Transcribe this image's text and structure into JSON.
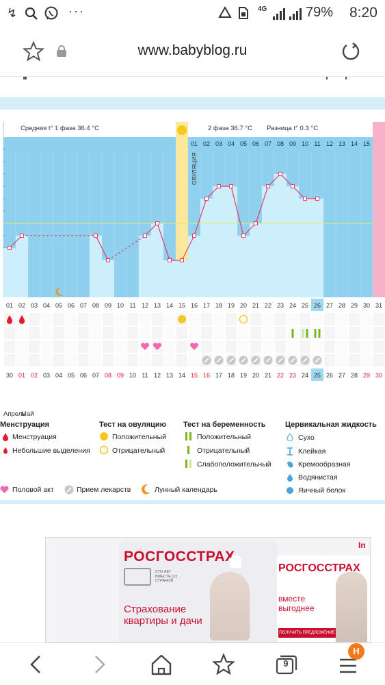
{
  "status_bar": {
    "time": "8:20",
    "battery": "79%",
    "network": "4G",
    "left_icons": [
      "notification-icon",
      "search-icon",
      "viber-icon",
      "more-icon"
    ],
    "right_icons": [
      "recycle-icon",
      "sim-icon",
      "signal-icon",
      "signal-icon"
    ]
  },
  "browser": {
    "url": "www.babyblog.ru",
    "nav": [
      "back",
      "forward",
      "home",
      "bookmarks",
      "tabs",
      "menu"
    ],
    "tabs_count": "9",
    "menu_badge": "H"
  },
  "chart": {
    "phase1": "Средняя t° 1 фаза 36.4 °С",
    "phase2": "2 фаза 36.7 °С",
    "diff": "Разница t° 0.3 °С",
    "ovulation": "ОВУЛЯЦИЯ",
    "header_days": [
      "01",
      "02",
      "03",
      "04",
      "05",
      "06",
      "07",
      "08",
      "09",
      "10",
      "11",
      "12",
      "13",
      "14",
      "15"
    ],
    "days": [
      "01",
      "02",
      "03",
      "04",
      "05",
      "06",
      "07",
      "08",
      "09",
      "10",
      "11",
      "12",
      "13",
      "14",
      "15",
      "16",
      "17",
      "18",
      "19",
      "20",
      "21",
      "22",
      "23",
      "24",
      "25",
      "26",
      "27",
      "28",
      "29",
      "30",
      "31"
    ],
    "today_index": 25,
    "dates": [
      "30",
      "01",
      "02",
      "03",
      "04",
      "05",
      "06",
      "07",
      "08",
      "09",
      "10",
      "11",
      "12",
      "13",
      "14",
      "15",
      "16",
      "17",
      "18",
      "19",
      "20",
      "21",
      "22",
      "23",
      "24",
      "25",
      "26",
      "27",
      "28",
      "29",
      "30"
    ],
    "dates_red": [
      1,
      2,
      8,
      9,
      15,
      16,
      22,
      23,
      29,
      30
    ],
    "month": "Апрель",
    "month2": "Май",
    "chart_data": {
      "type": "line",
      "x": [
        "01",
        "02",
        "03",
        "04",
        "05",
        "06",
        "07",
        "08",
        "09",
        "10",
        "11",
        "12",
        "13",
        "14",
        "15",
        "16",
        "17",
        "18",
        "19",
        "20",
        "21",
        "22",
        "23",
        "24",
        "25",
        "26"
      ],
      "values": [
        36.4,
        36.5,
        null,
        null,
        null,
        null,
        null,
        36.5,
        36.3,
        null,
        null,
        36.5,
        36.6,
        36.3,
        36.3,
        36.5,
        36.8,
        36.9,
        36.9,
        36.5,
        36.6,
        36.9,
        37.0,
        36.9,
        36.8,
        36.8
      ],
      "coverline": 36.6,
      "ylim": [
        36.0,
        37.3
      ]
    }
  },
  "markers": {
    "menstruation_days": [
      0,
      1
    ],
    "ovulation_positive_day": 14,
    "ovulation_negative_day": 19,
    "pregnancy_days": [
      23,
      24,
      25
    ],
    "intercourse_days": [
      11,
      12,
      15
    ],
    "medicine_days": [
      16,
      17,
      18,
      19,
      20,
      21,
      22,
      23,
      24,
      25
    ],
    "lunar_day": 4
  },
  "legend": {
    "menstruation_title": "Менструация",
    "menstruation": "Менструация",
    "spotting": "Небольшие выделения",
    "ovulation_test_title": "Тест на овуляцию",
    "ov_positive": "Положительный",
    "ov_negative": "Отрицательный",
    "pregnancy_test_title": "Тест на беременность",
    "preg_positive": "Положительный",
    "preg_negative": "Отрицательный",
    "preg_weak": "Слабоположительный",
    "cervical_title": "Цервикальная жидкость",
    "dry": "Сухо",
    "sticky": "Клейкая",
    "creamy": "Кремообразная",
    "watery": "Водянистая",
    "eggwhite": "Яичный белок",
    "intercourse": "Половой акт",
    "medicine": "Прием лекарств",
    "lunar": "Лунный календарь"
  },
  "ad": {
    "brand": "РОСГОССТРАХ",
    "tagline": "СТО ЛЕТ ВМЕСТЕ СО СТРАНОЙ",
    "headline": "Страхование квартиры и дачи",
    "brand2": "РОСГОССТРАХ",
    "tagline2": "вместе выгоднее",
    "cta": "ПОЛУЧИТЬ ПРЕДЛОЖЕНИЕ",
    "corner": "In"
  },
  "colors": {
    "sky": "#8fd0ef",
    "bar": "#cdeefb",
    "line": "#e23d6b",
    "ovulation": "#fbe89a",
    "red": "#e41b2f",
    "yellow": "#f6c71c",
    "green": "#7cb71a",
    "pink": "#f06ab0",
    "gray": "#c8c8c8",
    "orange": "#f0941b",
    "band": "#d6eef7",
    "brand_red": "#c8102e"
  }
}
